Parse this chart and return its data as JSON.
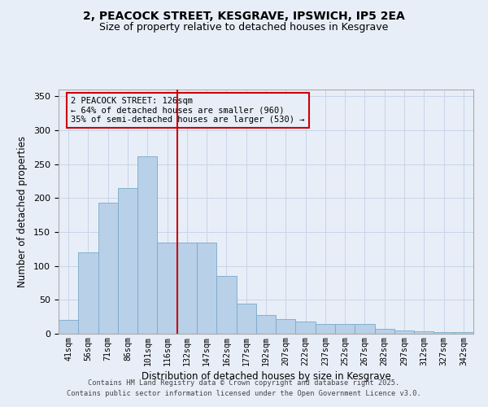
{
  "title_line1": "2, PEACOCK STREET, KESGRAVE, IPSWICH, IP5 2EA",
  "title_line2": "Size of property relative to detached houses in Kesgrave",
  "xlabel": "Distribution of detached houses by size in Kesgrave",
  "ylabel": "Number of detached properties",
  "footer_line1": "Contains HM Land Registry data © Crown copyright and database right 2025.",
  "footer_line2": "Contains public sector information licensed under the Open Government Licence v3.0.",
  "annotation_line1": "2 PEACOCK STREET: 126sqm",
  "annotation_line2": "← 64% of detached houses are smaller (960)",
  "annotation_line3": "35% of semi-detached houses are larger (530) →",
  "bar_color": "#b8d0e8",
  "bar_edgecolor": "#7aaac8",
  "vline_color": "#cc0000",
  "background_color": "#e8eef8",
  "categories": [
    "41sqm",
    "56sqm",
    "71sqm",
    "86sqm",
    "101sqm",
    "116sqm",
    "132sqm",
    "147sqm",
    "162sqm",
    "177sqm",
    "192sqm",
    "207sqm",
    "222sqm",
    "237sqm",
    "252sqm",
    "267sqm",
    "282sqm",
    "297sqm",
    "312sqm",
    "327sqm",
    "342sqm"
  ],
  "values": [
    20,
    120,
    193,
    215,
    262,
    135,
    135,
    135,
    85,
    45,
    28,
    22,
    18,
    15,
    14,
    14,
    7,
    5,
    4,
    3,
    2
  ],
  "ylim": [
    0,
    360
  ],
  "yticks": [
    0,
    50,
    100,
    150,
    200,
    250,
    300,
    350
  ],
  "vline_x": 5.5,
  "gridcolor": "#c8d4e8"
}
